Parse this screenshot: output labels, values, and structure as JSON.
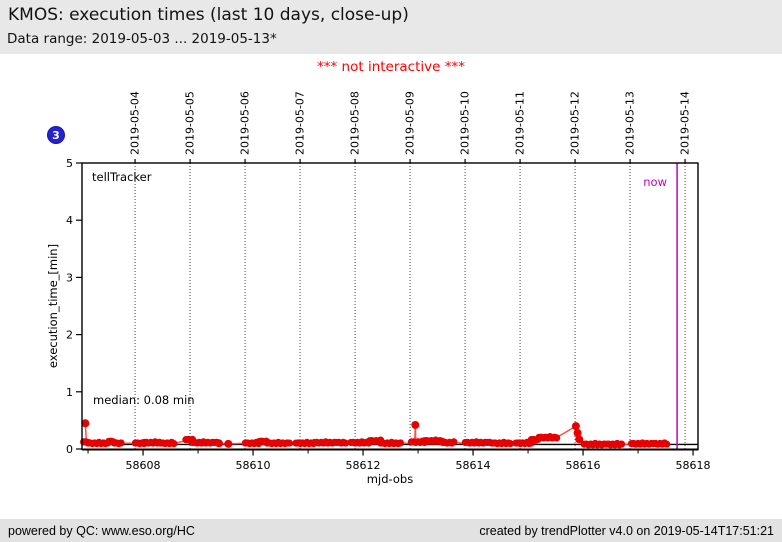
{
  "header": {
    "title": "KMOS: execution times (last 10 days, close-up)",
    "subtitle": "Data range: 2019-05-03 ... 2019-05-13*",
    "notice": "*** not interactive ***"
  },
  "badge": {
    "label": "3"
  },
  "chart_data": {
    "type": "scatter",
    "xlabel": "mjd-obs",
    "ylabel": "execution_time_[min]",
    "series_label": "tellTracker",
    "median_label": "median: 0.08 min",
    "median_value": 0.08,
    "now_label": "now",
    "now_mjd": 58617.71,
    "xlim": [
      58606.89,
      58618.09
    ],
    "ylim": [
      0,
      5
    ],
    "x_major_ticks": [
      58608,
      58610,
      58612,
      58614,
      58616,
      58618
    ],
    "x_minor_ticks": [
      58607,
      58609,
      58611,
      58613,
      58615,
      58617
    ],
    "y_ticks": [
      0,
      1,
      2,
      3,
      4,
      5
    ],
    "grid": "vertical-dotted-at-dates",
    "legend_position": "none",
    "top_dates": [
      {
        "label": "2019-05-04",
        "mjd": 58607.855
      },
      {
        "label": "2019-05-05",
        "mjd": 58608.855
      },
      {
        "label": "2019-05-06",
        "mjd": 58609.855
      },
      {
        "label": "2019-05-07",
        "mjd": 58610.855
      },
      {
        "label": "2019-05-08",
        "mjd": 58611.855
      },
      {
        "label": "2019-05-09",
        "mjd": 58612.855
      },
      {
        "label": "2019-05-10",
        "mjd": 58613.855
      },
      {
        "label": "2019-05-11",
        "mjd": 58614.855
      },
      {
        "label": "2019-05-12",
        "mjd": 58615.855
      },
      {
        "label": "2019-05-13",
        "mjd": 58616.855
      },
      {
        "label": "2019-05-14",
        "mjd": 58617.855
      }
    ],
    "colors": {
      "points": "#e60000",
      "line": "#ff4d4d",
      "median_line": "#000000",
      "now_line": "#c400c4",
      "grid_line": "#444444",
      "badge": "#2424cf",
      "notice": "#ff0000"
    },
    "clusters": [
      [
        58606.92,
        58607.0,
        0.12
      ],
      [
        58607.0,
        58607.38,
        0.1
      ],
      [
        58607.38,
        58607.48,
        0.13
      ],
      [
        58607.48,
        58607.62,
        0.1
      ],
      [
        58607.86,
        58608.02,
        0.1
      ],
      [
        58608.02,
        58608.32,
        0.11
      ],
      [
        58608.32,
        58608.58,
        0.1
      ],
      [
        58608.78,
        58608.9,
        0.16
      ],
      [
        58608.9,
        58609.35,
        0.11
      ],
      [
        58609.86,
        58610.12,
        0.1
      ],
      [
        58610.12,
        58610.26,
        0.13
      ],
      [
        58610.26,
        58610.68,
        0.1
      ],
      [
        58610.78,
        58611.12,
        0.1
      ],
      [
        58611.12,
        58611.68,
        0.11
      ],
      [
        58611.78,
        58612.12,
        0.11
      ],
      [
        58612.12,
        58612.32,
        0.14
      ],
      [
        58612.32,
        58612.68,
        0.1
      ],
      [
        58612.88,
        58613.12,
        0.12
      ],
      [
        58613.12,
        58613.45,
        0.14
      ],
      [
        58613.45,
        58613.65,
        0.11
      ],
      [
        58613.86,
        58614.36,
        0.11
      ],
      [
        58614.36,
        58614.68,
        0.1
      ],
      [
        58614.78,
        58615.06,
        0.1
      ],
      [
        58615.06,
        58615.2,
        0.16
      ],
      [
        58615.2,
        58615.52,
        0.2
      ],
      [
        58616.02,
        58616.72,
        0.08
      ],
      [
        58616.88,
        58617.55,
        0.09
      ]
    ],
    "spike_points": [
      [
        58606.95,
        0.45
      ],
      [
        58612.95,
        0.42
      ],
      [
        58615.87,
        0.4
      ],
      [
        58615.9,
        0.28
      ],
      [
        58615.93,
        0.17
      ],
      [
        58609.38,
        0.1
      ],
      [
        58609.55,
        0.09
      ]
    ],
    "line_points": [
      [
        58606.95,
        0.45
      ],
      [
        58606.97,
        0.11
      ],
      [
        58607.62,
        0.1
      ],
      [
        58607.86,
        0.1
      ],
      [
        58608.58,
        0.1
      ],
      [
        58608.8,
        0.15
      ],
      [
        58609.0,
        0.11
      ],
      [
        58609.55,
        0.09
      ],
      [
        58609.9,
        0.1
      ],
      [
        58610.4,
        0.1
      ],
      [
        58610.9,
        0.1
      ],
      [
        58611.4,
        0.11
      ],
      [
        58611.9,
        0.11
      ],
      [
        58612.2,
        0.13
      ],
      [
        58612.68,
        0.1
      ],
      [
        58612.94,
        0.1
      ],
      [
        58612.95,
        0.42
      ],
      [
        58612.96,
        0.11
      ],
      [
        58613.4,
        0.12
      ],
      [
        58613.9,
        0.1
      ],
      [
        58614.4,
        0.1
      ],
      [
        58614.8,
        0.1
      ],
      [
        58615.1,
        0.15
      ],
      [
        58615.3,
        0.2
      ],
      [
        58615.52,
        0.2
      ],
      [
        58615.87,
        0.4
      ],
      [
        58615.9,
        0.28
      ],
      [
        58615.93,
        0.17
      ],
      [
        58616.05,
        0.08
      ],
      [
        58616.7,
        0.08
      ],
      [
        58616.9,
        0.09
      ],
      [
        58617.55,
        0.09
      ]
    ]
  },
  "footer": {
    "left": "powered by QC: www.eso.org/HC",
    "right": "created by trendPlotter v4.0 on 2019-05-14T17:51:21"
  }
}
